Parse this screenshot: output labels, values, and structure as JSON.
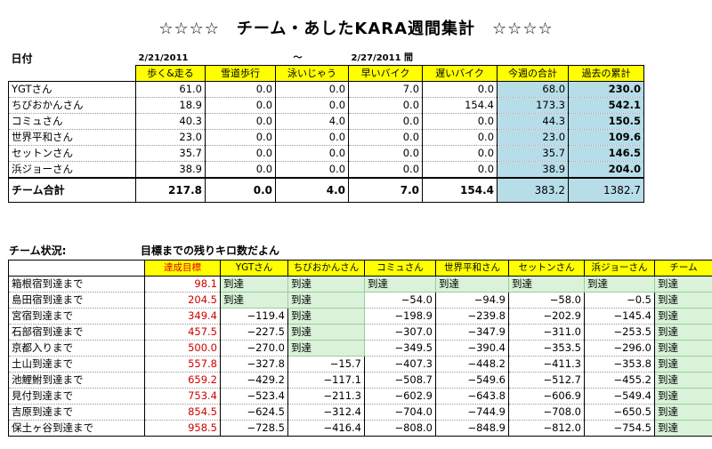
{
  "title": "☆☆☆☆　チーム・あしたKARA週間集計　☆☆☆☆",
  "date_label": "日付",
  "date_start": "2/21/2011",
  "date_sep": "～",
  "date_end": "2/27/2011 間",
  "weekly": {
    "headers": [
      "歩く&走る",
      "雪道歩行",
      "泳いじゃう",
      "早いバイク",
      "遅いバイク",
      "今週の合計",
      "過去の累計"
    ],
    "rows": [
      {
        "name": "YGTさん",
        "values": [
          "61.0",
          "0.0",
          "0.0",
          "7.0",
          "0.0",
          "68.0",
          "230.0"
        ]
      },
      {
        "name": "ちびおかんさん",
        "values": [
          "18.9",
          "0.0",
          "0.0",
          "0.0",
          "154.4",
          "173.3",
          "542.1"
        ]
      },
      {
        "name": "コミュさん",
        "values": [
          "40.3",
          "0.0",
          "4.0",
          "0.0",
          "0.0",
          "44.3",
          "150.5"
        ]
      },
      {
        "name": "世界平和さん",
        "values": [
          "23.0",
          "0.0",
          "0.0",
          "0.0",
          "0.0",
          "23.0",
          "109.6"
        ]
      },
      {
        "name": "セットンさん",
        "values": [
          "35.7",
          "0.0",
          "0.0",
          "0.0",
          "0.0",
          "35.7",
          "146.5"
        ]
      },
      {
        "name": "浜ジョーさん",
        "values": [
          "38.9",
          "0.0",
          "0.0",
          "0.0",
          "0.0",
          "38.9",
          "204.0"
        ]
      }
    ],
    "total": {
      "name": "チーム合計",
      "values": [
        "217.8",
        "0.0",
        "4.0",
        "7.0",
        "154.4",
        "383.2",
        "1382.7"
      ]
    }
  },
  "status_label": "チーム状況:",
  "status_subtitle": "目標までの残りキロ数だよん",
  "status": {
    "headers": [
      "達成目標",
      "YGTさん",
      "ちびおかんさん",
      "コミュさん",
      "世界平和さん",
      "セットンさん",
      "浜ジョーさん",
      "チーム"
    ],
    "rows": [
      {
        "name": "箱根宿到達まで",
        "target": "98.1",
        "cells": [
          "到達",
          "到達",
          "到達",
          "到達",
          "到達",
          "到達",
          "到達"
        ]
      },
      {
        "name": "島田宿到達まで",
        "target": "204.5",
        "cells": [
          "到達",
          "到達",
          "−54.0",
          "−94.9",
          "−58.0",
          "−0.5",
          "到達"
        ]
      },
      {
        "name": "宮宿到達まで",
        "target": "349.4",
        "cells": [
          "−119.4",
          "到達",
          "−198.9",
          "−239.8",
          "−202.9",
          "−145.4",
          "到達"
        ]
      },
      {
        "name": "石部宿到達まで",
        "target": "457.5",
        "cells": [
          "−227.5",
          "到達",
          "−307.0",
          "−347.9",
          "−311.0",
          "−253.5",
          "到達"
        ]
      },
      {
        "name": "京都入りまで",
        "target": "500.0",
        "cells": [
          "−270.0",
          "到達",
          "−349.5",
          "−390.4",
          "−353.5",
          "−296.0",
          "到達"
        ]
      },
      {
        "name": "土山到達まで",
        "target": "557.8",
        "cells": [
          "−327.8",
          "−15.7",
          "−407.3",
          "−448.2",
          "−411.3",
          "−353.8",
          "到達"
        ]
      },
      {
        "name": "池鯉鮒到達まで",
        "target": "659.2",
        "cells": [
          "−429.2",
          "−117.1",
          "−508.7",
          "−549.6",
          "−512.7",
          "−455.2",
          "到達"
        ]
      },
      {
        "name": "見付到達まで",
        "target": "753.4",
        "cells": [
          "−523.4",
          "−211.3",
          "−602.9",
          "−643.8",
          "−606.9",
          "−549.4",
          "到達"
        ]
      },
      {
        "name": "吉原到達まで",
        "target": "854.5",
        "cells": [
          "−624.5",
          "−312.4",
          "−704.0",
          "−744.9",
          "−708.0",
          "−650.5",
          "到達"
        ]
      },
      {
        "name": "保土ヶ谷到達まで",
        "target": "958.5",
        "cells": [
          "−728.5",
          "−416.4",
          "−808.0",
          "−848.9",
          "−812.0",
          "−754.5",
          "到達"
        ]
      }
    ]
  },
  "colors": {
    "header_yellow": "#ffff00",
    "total_blue": "#b7dde8",
    "reached_green": "#d9f2d9",
    "target_red": "#d00000"
  }
}
